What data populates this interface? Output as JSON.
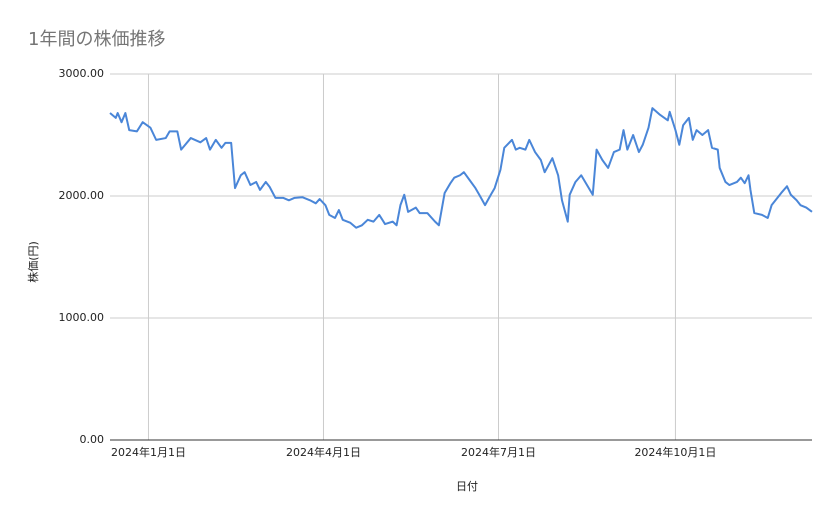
{
  "chart_data": {
    "type": "line",
    "title": "1年間の株価推移",
    "x_label": "日付",
    "y_label": "株価(円)",
    "color": "#4a86d8",
    "grid": true,
    "x": [
      "2023-12-12",
      "2023-12-15",
      "2023-12-16",
      "2023-12-18",
      "2023-12-20",
      "2023-12-22",
      "2023-12-26",
      "2023-12-29",
      "2024-01-02",
      "2024-01-05",
      "2024-01-10",
      "2024-01-12",
      "2024-01-16",
      "2024-01-18",
      "2024-01-23",
      "2024-01-28",
      "2024-01-31",
      "2024-02-02",
      "2024-02-05",
      "2024-02-08",
      "2024-02-10",
      "2024-02-13",
      "2024-02-15",
      "2024-02-18",
      "2024-02-20",
      "2024-02-23",
      "2024-02-26",
      "2024-02-28",
      "2024-03-02",
      "2024-03-04",
      "2024-03-07",
      "2024-03-11",
      "2024-03-14",
      "2024-03-17",
      "2024-03-21",
      "2024-03-25",
      "2024-03-28",
      "2024-03-30",
      "2024-04-02",
      "2024-04-04",
      "2024-04-07",
      "2024-04-09",
      "2024-04-11",
      "2024-04-15",
      "2024-04-18",
      "2024-04-21",
      "2024-04-24",
      "2024-04-27",
      "2024-04-30",
      "2024-05-03",
      "2024-05-07",
      "2024-05-09",
      "2024-05-11",
      "2024-05-13",
      "2024-05-15",
      "2024-05-19",
      "2024-05-21",
      "2024-05-25",
      "2024-05-29",
      "2024-05-31",
      "2024-06-03",
      "2024-06-06",
      "2024-06-08",
      "2024-06-11",
      "2024-06-13",
      "2024-06-16",
      "2024-06-19",
      "2024-06-21",
      "2024-06-24",
      "2024-06-27",
      "2024-06-29",
      "2024-07-02",
      "2024-07-04",
      "2024-07-08",
      "2024-07-10",
      "2024-07-12",
      "2024-07-15",
      "2024-07-17",
      "2024-07-20",
      "2024-07-23",
      "2024-07-25",
      "2024-07-29",
      "2024-08-01",
      "2024-08-03",
      "2024-08-06",
      "2024-08-07",
      "2024-08-10",
      "2024-08-13",
      "2024-08-16",
      "2024-08-19",
      "2024-08-21",
      "2024-08-24",
      "2024-08-27",
      "2024-08-30",
      "2024-09-02",
      "2024-09-04",
      "2024-09-06",
      "2024-09-09",
      "2024-09-12",
      "2024-09-14",
      "2024-09-17",
      "2024-09-19",
      "2024-09-23",
      "2024-09-27",
      "2024-09-28",
      "2024-10-01",
      "2024-10-03",
      "2024-10-05",
      "2024-10-08",
      "2024-10-10",
      "2024-10-12",
      "2024-10-15",
      "2024-10-18",
      "2024-10-20",
      "2024-10-23",
      "2024-10-24",
      "2024-10-27",
      "2024-10-29",
      "2024-11-02",
      "2024-11-04",
      "2024-11-06",
      "2024-11-08",
      "2024-11-09",
      "2024-11-11",
      "2024-11-15",
      "2024-11-18",
      "2024-11-20",
      "2024-11-23",
      "2024-11-25",
      "2024-11-28",
      "2024-11-30",
      "2024-12-03",
      "2024-12-05",
      "2024-12-08",
      "2024-12-11"
    ],
    "values": [
      2680,
      2640,
      2680,
      2605,
      2680,
      2540,
      2530,
      2605,
      2560,
      2460,
      2475,
      2530,
      2530,
      2380,
      2475,
      2440,
      2475,
      2380,
      2460,
      2395,
      2435,
      2435,
      2065,
      2170,
      2195,
      2090,
      2115,
      2050,
      2115,
      2075,
      1985,
      1985,
      1965,
      1985,
      1990,
      1965,
      1940,
      1975,
      1925,
      1845,
      1820,
      1885,
      1805,
      1780,
      1740,
      1760,
      1805,
      1790,
      1845,
      1770,
      1790,
      1760,
      1925,
      2010,
      1870,
      1905,
      1860,
      1860,
      1790,
      1760,
      2025,
      2105,
      2150,
      2170,
      2195,
      2130,
      2065,
      2010,
      1925,
      2010,
      2065,
      2215,
      2395,
      2460,
      2380,
      2395,
      2380,
      2460,
      2360,
      2295,
      2195,
      2310,
      2170,
      1965,
      1790,
      2010,
      2115,
      2170,
      2090,
      2010,
      2380,
      2295,
      2230,
      2360,
      2380,
      2540,
      2380,
      2500,
      2360,
      2420,
      2560,
      2720,
      2665,
      2620,
      2690,
      2540,
      2420,
      2580,
      2640,
      2460,
      2540,
      2500,
      2540,
      2395,
      2380,
      2230,
      2115,
      2090,
      2115,
      2150,
      2105,
      2170,
      2050,
      1860,
      1845,
      1820,
      1925,
      1985,
      2025,
      2080,
      2010,
      1965,
      1925,
      1905,
      1870
    ],
    "xlim": [
      "2023-12-12",
      "2024-12-11"
    ],
    "xticks": [
      {
        "value": "2024-01-01",
        "label": "2024年1月1日"
      },
      {
        "value": "2024-04-01",
        "label": "2024年4月1日"
      },
      {
        "value": "2024-07-01",
        "label": "2024年7月1日"
      },
      {
        "value": "2024-10-01",
        "label": "2024年10月1日"
      }
    ],
    "ylim": [
      0,
      3000
    ],
    "yticks": [
      {
        "value": 0,
        "label": "0.00"
      },
      {
        "value": 1000,
        "label": "1000.00"
      },
      {
        "value": 2000,
        "label": "2000.00"
      },
      {
        "value": 3000,
        "label": "3000.00"
      }
    ]
  }
}
